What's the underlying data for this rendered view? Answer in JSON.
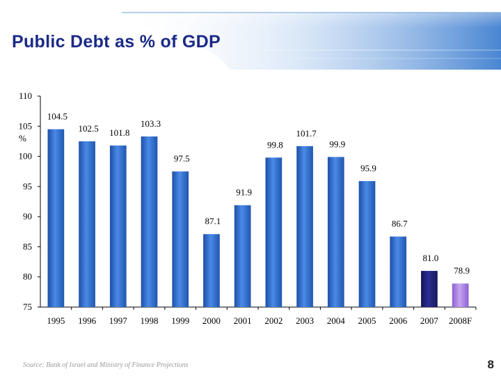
{
  "slide": {
    "title": "Public Debt as % of GDP",
    "source": "Source: Bank of Israel and Ministry of Finance Projections",
    "page_number": "8"
  },
  "colors": {
    "title": "#1a2a86",
    "banner": "#3f7fd0",
    "bar_actual": "#2f6fd0",
    "bar_2007": "#1c1f7a",
    "bar_2008F": "#a77fe0"
  },
  "chart_data": {
    "type": "bar",
    "categories": [
      "1995",
      "1996",
      "1997",
      "1998",
      "1999",
      "2000",
      "2001",
      "2002",
      "2003",
      "2004",
      "2005",
      "2006",
      "2007",
      "2008F"
    ],
    "values": [
      104.5,
      102.5,
      101.8,
      103.3,
      97.5,
      87.1,
      91.9,
      99.8,
      101.7,
      99.9,
      95.9,
      86.7,
      81.0,
      78.9
    ],
    "data_labels": [
      "104.5",
      "102.5",
      "101.8",
      "103.3",
      "97.5",
      "87.1",
      "91.9",
      "99.8",
      "101.7",
      "99.9",
      "95.9",
      "86.7",
      "81.0",
      "78.9"
    ],
    "y_ticks": [
      "110",
      "105",
      "100",
      "95",
      "90",
      "85",
      "80",
      "75"
    ],
    "y_unit": "%",
    "ylim": [
      75,
      110
    ],
    "grid": false,
    "legend": "none"
  }
}
